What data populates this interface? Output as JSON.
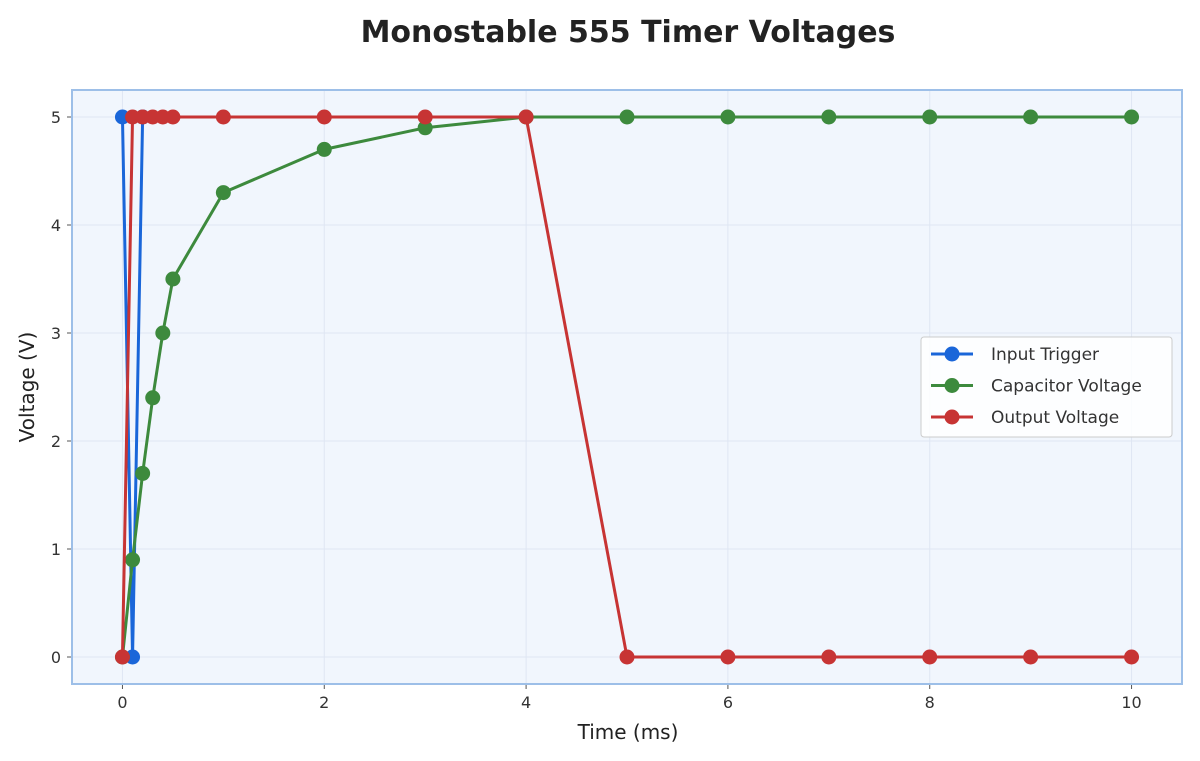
{
  "chart_data": {
    "type": "line",
    "title": "Monostable 555 Timer Voltages",
    "xlabel": "Time (ms)",
    "ylabel": "Voltage (V)",
    "xlim": [
      -0.5,
      10.5
    ],
    "ylim": [
      -0.25,
      5.25
    ],
    "xticks": [
      0,
      2,
      4,
      6,
      8,
      10
    ],
    "yticks": [
      0,
      1,
      2,
      3,
      4,
      5
    ],
    "grid": true,
    "legend_position": "center-right",
    "background_color": "#f1f6fd",
    "frame_color": "#9dbfe8",
    "series": [
      {
        "name": "Input Trigger",
        "color": "#1a66d9",
        "x": [
          0,
          0.1,
          0.2
        ],
        "y": [
          5,
          0,
          5
        ]
      },
      {
        "name": "Capacitor Voltage",
        "color": "#3d8a3d",
        "x": [
          0,
          0.1,
          0.2,
          0.3,
          0.4,
          0.5,
          1,
          2,
          3,
          4,
          5,
          6,
          7,
          8,
          9,
          10
        ],
        "y": [
          0,
          0.9,
          1.7,
          2.4,
          3.0,
          3.5,
          4.3,
          4.7,
          4.9,
          5.0,
          5.0,
          5.0,
          5.0,
          5.0,
          5.0,
          5.0
        ]
      },
      {
        "name": "Output Voltage",
        "color": "#c73434",
        "x": [
          0,
          0.1,
          0.2,
          0.3,
          0.4,
          0.5,
          1,
          2,
          3,
          4,
          5,
          6,
          7,
          8,
          9,
          10
        ],
        "y": [
          0,
          5,
          5,
          5,
          5,
          5,
          5,
          5,
          5,
          5,
          0,
          0,
          0,
          0,
          0,
          0
        ]
      }
    ]
  }
}
